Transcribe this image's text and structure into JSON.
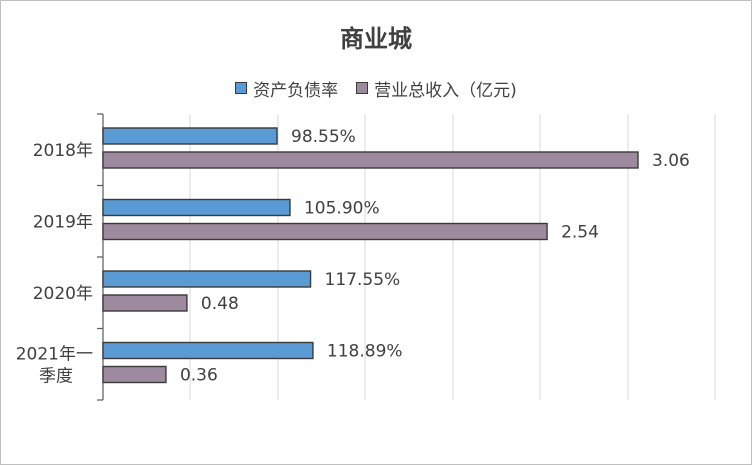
{
  "chart_data": {
    "type": "bar",
    "orientation": "horizontal",
    "title": "商业城",
    "categories": [
      [
        "2018年"
      ],
      [
        "2019年"
      ],
      [
        "2020年"
      ],
      [
        "2021年一",
        "季度"
      ]
    ],
    "series": [
      {
        "name": "资产负债率",
        "values": [
          98.55,
          105.9,
          117.55,
          118.89
        ],
        "labels": [
          "98.55%",
          "105.90%",
          "117.55%",
          "118.89%"
        ],
        "color": "#5b9bd5",
        "unit": "%"
      },
      {
        "name": "营业总收入（亿元）",
        "legend_text": "营业总收入（亿元)",
        "values": [
          3.06,
          2.54,
          0.48,
          0.36
        ],
        "labels": [
          "3.06",
          "2.54",
          "0.48",
          "0.36"
        ],
        "color": "#9e8a9e",
        "unit": "亿元"
      }
    ],
    "grid": true,
    "legend_position": "top"
  }
}
